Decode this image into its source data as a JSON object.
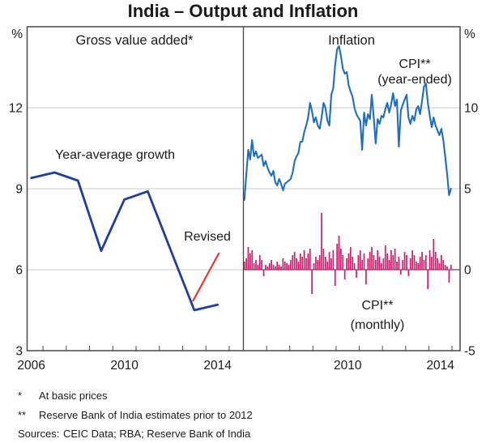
{
  "title": "India – Output and Inflation",
  "colors": {
    "gva_line": "#203da0",
    "cpi_line": "#1d6ec2",
    "cpi_bars": "#d6186b",
    "revised": "#e8392f",
    "grid": "#c8c8c8",
    "zero_line": "#6b6b6b",
    "frame": "#464646",
    "tick": "#464646",
    "text": "#1a1a1a"
  },
  "footnotes": [
    {
      "marker": "*",
      "text": "At basic prices"
    },
    {
      "marker": "**",
      "text": "Reserve Bank of India estimates prior to 2012"
    }
  ],
  "sources": {
    "label": "Sources:",
    "text": "CEIC Data; RBA; Reserve Bank of India"
  },
  "chart_data": [
    {
      "type": "line",
      "panel": "left",
      "title": "Gross value added*",
      "ylabel": "%",
      "ylim": [
        3,
        15
      ],
      "yticks": [
        {
          "v": 3,
          "label": "3"
        },
        {
          "v": 6,
          "label": "6"
        },
        {
          "v": 9,
          "label": "9"
        },
        {
          "v": 12,
          "label": "12"
        }
      ],
      "xlim": [
        2006.32,
        2015.61
      ],
      "xticks": [
        2007,
        2008,
        2009,
        2010,
        2011,
        2012,
        2013,
        2014,
        2015
      ],
      "xtick_labels": [
        {
          "t": 2006.5,
          "label": "2006"
        },
        {
          "t": 2010.5,
          "label": "2010"
        },
        {
          "t": 2014.5,
          "label": "2014"
        }
      ],
      "grid": true,
      "series": [
        {
          "name": "Year-average growth",
          "type": "line",
          "x": [
            2006,
            2007,
            2008,
            2009,
            2010,
            2011,
            2012,
            2013,
            2014
          ],
          "values": [
            9.4,
            9.6,
            9.3,
            6.7,
            8.6,
            8.9,
            6.7,
            4.5,
            4.7
          ]
        }
      ],
      "annotation": {
        "label": "Revised",
        "line": {
          "t1": 2014.55,
          "v1": 6.6,
          "t2": 2013.45,
          "v2": 4.85
        }
      }
    },
    {
      "type": "line+bar",
      "panel": "right",
      "title": "Inflation",
      "ylabel": "%",
      "ylim": [
        -5,
        15
      ],
      "yticks": [
        {
          "v": -5,
          "label": "-5"
        },
        {
          "v": 0,
          "label": "0"
        },
        {
          "v": 5,
          "label": "5"
        },
        {
          "v": 10,
          "label": "10"
        }
      ],
      "xlim": [
        2006.0,
        2015.35
      ],
      "xticks": [
        2007,
        2008,
        2009,
        2010,
        2011,
        2012,
        2013,
        2014,
        2015
      ],
      "xtick_labels": [
        {
          "t": 2010.5,
          "label": "2010"
        },
        {
          "t": 2014.5,
          "label": "2014"
        }
      ],
      "grid": true,
      "series": [
        {
          "name": "CPI** (year-ended)",
          "label_lines": [
            "CPI**",
            "(year-ended)"
          ],
          "type": "line",
          "start_year": 2006,
          "freq": "monthly",
          "values": [
            4.3,
            5.9,
            7.4,
            6.8,
            8.0,
            7.0,
            7.3,
            6.9,
            7.0,
            7.1,
            6.4,
            6.7,
            6.3,
            6.0,
            5.8,
            6.1,
            5.4,
            5.2,
            5.6,
            5.3,
            4.9,
            5.3,
            5.4,
            5.5,
            5.6,
            6.0,
            6.7,
            7.0,
            7.2,
            7.9,
            7.9,
            8.5,
            8.9,
            9.4,
            10.3,
            9.8,
            9.1,
            9.4,
            8.9,
            8.7,
            9.4,
            10.3,
            10.0,
            9.2,
            8.9,
            10.8,
            11.2,
            12.6,
            13.6,
            13.8,
            13.2,
            12.4,
            12.1,
            12.2,
            11.4,
            11.0,
            10.7,
            10.0,
            9.6,
            9.4,
            9.2,
            7.4,
            9.7,
            8.9,
            9.6,
            9.3,
            10.8,
            9.4,
            7.8,
            9.3,
            9.0,
            9.5,
            9.4,
            9.9,
            10.3,
            9.7,
            10.2,
            10.9,
            10.1,
            10.5,
            7.6,
            9.8,
            10.2,
            10.5,
            10.8,
            9.4,
            9.0,
            9.5,
            9.2,
            9.9,
            10.1,
            9.6,
            10.4,
            11.3,
            11.5,
            10.3,
            9.5,
            8.8,
            9.4,
            8.9,
            8.6,
            8.3,
            8.7,
            8.0,
            7.0,
            5.9,
            4.6,
            5.0
          ]
        },
        {
          "name": "CPI** (monthly)",
          "label_lines": [
            "CPI**",
            "(monthly)"
          ],
          "type": "bar",
          "start_year": 2006,
          "freq": "monthly",
          "values": [
            0.5,
            0.7,
            1.4,
            1.0,
            1.2,
            0.4,
            0.6,
            0.3,
            0.9,
            0.6,
            -0.4,
            0.3,
            0.2,
            0.4,
            0.6,
            0.3,
            0.2,
            0.5,
            0.3,
            0.2,
            0.7,
            0.5,
            0.4,
            0.3,
            0.6,
            0.9,
            1.1,
            0.7,
            0.5,
            1.0,
            0.8,
            1.2,
            0.7,
            1.0,
            1.3,
            -1.5,
            0.4,
            0.8,
            0.6,
            0.9,
            3.5,
            1.3,
            0.8,
            0.5,
            1.1,
            0.7,
            1.2,
            -1.0,
            1.6,
            2.1,
            1.3,
            0.9,
            -0.6,
            0.7,
            1.0,
            1.4,
            0.8,
            0.4,
            -0.5,
            0.9,
            1.2,
            0.6,
            1.0,
            -0.9,
            0.7,
            1.1,
            1.4,
            0.9,
            0.6,
            1.2,
            0.8,
            0.4,
            0.7,
            1.5,
            1.0,
            0.6,
            1.2,
            0.9,
            1.3,
            0.5,
            0.8,
            -0.3,
            0.6,
            1.1,
            0.9,
            -0.4,
            0.7,
            1.2,
            0.9,
            0.5,
            0.4,
            0.8,
            1.1,
            0.6,
            0.9,
            -1.2,
            1.2,
            0.8,
            1.9,
            1.1,
            0.7,
            0.4,
            0.9,
            0.6,
            0.3,
            0.2,
            -0.8,
            0.3
          ]
        }
      ]
    }
  ]
}
